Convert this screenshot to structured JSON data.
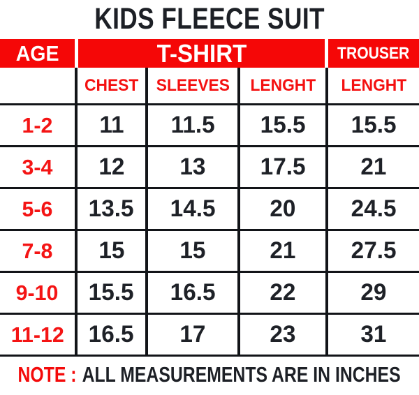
{
  "title": "KIDS FLEECE SUIT",
  "colors": {
    "red": "#f50707",
    "dark_text": "#1e2127",
    "border": "#121418",
    "background": "#ffffff"
  },
  "table": {
    "group_headers": {
      "age": "AGE",
      "tshirt": "T-SHIRT",
      "trouser": "TROUSER"
    },
    "sub_headers": {
      "chest": "CHEST",
      "sleeves": "SLEEVES",
      "length": "LENGHT",
      "trouser_length": "LENGHT"
    },
    "rows": [
      {
        "age": "1-2",
        "chest": "11",
        "sleeves": "11.5",
        "length": "15.5",
        "trouser_length": "15.5"
      },
      {
        "age": "3-4",
        "chest": "12",
        "sleeves": "13",
        "length": "17.5",
        "trouser_length": "21"
      },
      {
        "age": "5-6",
        "chest": "13.5",
        "sleeves": "14.5",
        "length": "20",
        "trouser_length": "24.5"
      },
      {
        "age": "7-8",
        "chest": "15",
        "sleeves": "15",
        "length": "21",
        "trouser_length": "27.5"
      },
      {
        "age": "9-10",
        "chest": "15.5",
        "sleeves": "16.5",
        "length": "22",
        "trouser_length": "29"
      },
      {
        "age": "11-12",
        "chest": "16.5",
        "sleeves": "17",
        "length": "23",
        "trouser_length": "31"
      }
    ]
  },
  "note": {
    "label": "NOTE :",
    "text": "ALL MEASUREMENTS ARE IN INCHES"
  },
  "chart_data": {
    "type": "table",
    "title": "KIDS FLEECE SUIT",
    "columns": [
      "AGE",
      "T-SHIRT CHEST",
      "T-SHIRT SLEEVES",
      "T-SHIRT LENGHT",
      "TROUSER LENGHT"
    ],
    "rows": [
      [
        "1-2",
        11,
        11.5,
        15.5,
        15.5
      ],
      [
        "3-4",
        12,
        13,
        17.5,
        21
      ],
      [
        "5-6",
        13.5,
        14.5,
        20,
        24.5
      ],
      [
        "7-8",
        15,
        15,
        21,
        27.5
      ],
      [
        "9-10",
        15.5,
        16.5,
        22,
        29
      ],
      [
        "11-12",
        16.5,
        17,
        23,
        31
      ]
    ],
    "note": "ALL MEASUREMENTS ARE IN INCHES",
    "units": "inches"
  }
}
